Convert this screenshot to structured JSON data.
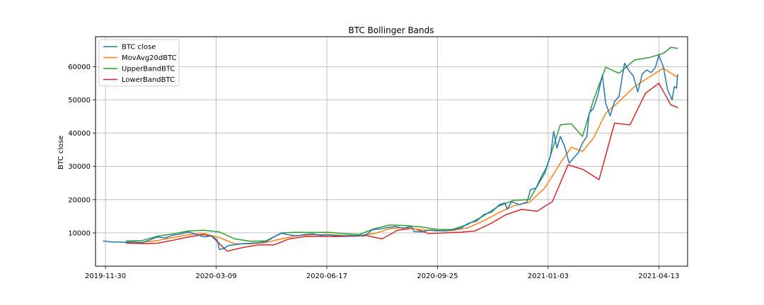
{
  "chart_data": {
    "type": "line",
    "title": "BTC Bollinger Bands",
    "xlabel": "",
    "ylabel": "BTC close",
    "ylim": [
      0,
      69000
    ],
    "xlim_dates": [
      "2019-11-21",
      "2021-05-09"
    ],
    "xticks": [
      "2019-11-30",
      "2020-03-09",
      "2020-06-17",
      "2020-09-25",
      "2021-01-03",
      "2021-04-13"
    ],
    "yticks": [
      10000,
      20000,
      30000,
      40000,
      50000,
      60000
    ],
    "grid": true,
    "legend_position": "top-left",
    "series": [
      {
        "name": "BTC close",
        "color": "#1f77b4",
        "points": [
          [
            "2019-11-28",
            7550
          ],
          [
            "2019-12-05",
            7300
          ],
          [
            "2019-12-12",
            7250
          ],
          [
            "2019-12-19",
            7150
          ],
          [
            "2019-12-26",
            7250
          ],
          [
            "2020-01-02",
            7000
          ],
          [
            "2020-01-09",
            7900
          ],
          [
            "2020-01-16",
            8800
          ],
          [
            "2020-01-23",
            8500
          ],
          [
            "2020-01-30",
            9300
          ],
          [
            "2020-02-06",
            9700
          ],
          [
            "2020-02-13",
            10300
          ],
          [
            "2020-02-20",
            9600
          ],
          [
            "2020-02-27",
            8800
          ],
          [
            "2020-03-05",
            9100
          ],
          [
            "2020-03-10",
            7900
          ],
          [
            "2020-03-12",
            5000
          ],
          [
            "2020-03-16",
            5300
          ],
          [
            "2020-03-20",
            6200
          ],
          [
            "2020-03-27",
            6500
          ],
          [
            "2020-04-03",
            6800
          ],
          [
            "2020-04-10",
            6900
          ],
          [
            "2020-04-17",
            7100
          ],
          [
            "2020-04-24",
            7500
          ],
          [
            "2020-04-30",
            8800
          ],
          [
            "2020-05-07",
            9900
          ],
          [
            "2020-05-14",
            9400
          ],
          [
            "2020-05-21",
            9100
          ],
          [
            "2020-05-28",
            9500
          ],
          [
            "2020-06-04",
            9700
          ],
          [
            "2020-06-11",
            9300
          ],
          [
            "2020-06-18",
            9400
          ],
          [
            "2020-06-25",
            9200
          ],
          [
            "2020-07-02",
            9100
          ],
          [
            "2020-07-09",
            9200
          ],
          [
            "2020-07-16",
            9150
          ],
          [
            "2020-07-23",
            9500
          ],
          [
            "2020-07-28",
            11000
          ],
          [
            "2020-08-04",
            11200
          ],
          [
            "2020-08-11",
            11600
          ],
          [
            "2020-08-18",
            11900
          ],
          [
            "2020-08-25",
            11400
          ],
          [
            "2020-09-01",
            11900
          ],
          [
            "2020-09-04",
            10400
          ],
          [
            "2020-09-11",
            10300
          ],
          [
            "2020-09-18",
            10900
          ],
          [
            "2020-09-25",
            10700
          ],
          [
            "2020-10-02",
            10600
          ],
          [
            "2020-10-09",
            11000
          ],
          [
            "2020-10-16",
            11400
          ],
          [
            "2020-10-23",
            12900
          ],
          [
            "2020-10-30",
            13500
          ],
          [
            "2020-11-06",
            15500
          ],
          [
            "2020-11-13",
            16300
          ],
          [
            "2020-11-20",
            18500
          ],
          [
            "2020-11-25",
            19000
          ],
          [
            "2020-11-27",
            17100
          ],
          [
            "2020-12-01",
            19400
          ],
          [
            "2020-12-08",
            18500
          ],
          [
            "2020-12-15",
            19300
          ],
          [
            "2020-12-18",
            23000
          ],
          [
            "2020-12-23",
            23500
          ],
          [
            "2020-12-28",
            27000
          ],
          [
            "2021-01-01",
            29300
          ],
          [
            "2021-01-05",
            33000
          ],
          [
            "2021-01-08",
            40500
          ],
          [
            "2021-01-11",
            35500
          ],
          [
            "2021-01-14",
            39000
          ],
          [
            "2021-01-18",
            36000
          ],
          [
            "2021-01-22",
            31000
          ],
          [
            "2021-01-26",
            32500
          ],
          [
            "2021-01-30",
            34000
          ],
          [
            "2021-02-03",
            37000
          ],
          [
            "2021-02-07",
            39000
          ],
          [
            "2021-02-09",
            46000
          ],
          [
            "2021-02-13",
            47500
          ],
          [
            "2021-02-17",
            51500
          ],
          [
            "2021-02-21",
            57500
          ],
          [
            "2021-02-24",
            49000
          ],
          [
            "2021-02-28",
            45200
          ],
          [
            "2021-03-04",
            49500
          ],
          [
            "2021-03-08",
            51000
          ],
          [
            "2021-03-13",
            61000
          ],
          [
            "2021-03-17",
            58800
          ],
          [
            "2021-03-21",
            57200
          ],
          [
            "2021-03-25",
            52400
          ],
          [
            "2021-03-29",
            57800
          ],
          [
            "2021-04-02",
            59000
          ],
          [
            "2021-04-06",
            58200
          ],
          [
            "2021-04-10",
            59800
          ],
          [
            "2021-04-13",
            63500
          ],
          [
            "2021-04-17",
            60000
          ],
          [
            "2021-04-21",
            53000
          ],
          [
            "2021-04-25",
            50000
          ],
          [
            "2021-04-27",
            54000
          ],
          [
            "2021-04-29",
            53500
          ],
          [
            "2021-04-30",
            57600
          ]
        ]
      },
      {
        "name": "MovAvg20dBTC",
        "color": "#ff7f0e",
        "points": [
          [
            "2019-12-19",
            7300
          ],
          [
            "2020-01-02",
            7200
          ],
          [
            "2020-01-16",
            7700
          ],
          [
            "2020-01-30",
            8600
          ],
          [
            "2020-02-13",
            9500
          ],
          [
            "2020-02-27",
            9800
          ],
          [
            "2020-03-12",
            8600
          ],
          [
            "2020-03-26",
            6700
          ],
          [
            "2020-04-09",
            6700
          ],
          [
            "2020-04-23",
            7100
          ],
          [
            "2020-05-07",
            8200
          ],
          [
            "2020-05-21",
            9200
          ],
          [
            "2020-06-04",
            9400
          ],
          [
            "2020-06-18",
            9500
          ],
          [
            "2020-07-02",
            9300
          ],
          [
            "2020-07-16",
            9200
          ],
          [
            "2020-07-30",
            9800
          ],
          [
            "2020-08-13",
            11300
          ],
          [
            "2020-08-27",
            11600
          ],
          [
            "2020-09-10",
            11000
          ],
          [
            "2020-09-24",
            10600
          ],
          [
            "2020-10-08",
            10700
          ],
          [
            "2020-10-22",
            11500
          ],
          [
            "2020-11-05",
            13500
          ],
          [
            "2020-11-19",
            16000
          ],
          [
            "2020-12-03",
            18200
          ],
          [
            "2020-12-17",
            19200
          ],
          [
            "2020-12-31",
            23500
          ],
          [
            "2021-01-14",
            31000
          ],
          [
            "2021-01-24",
            35800
          ],
          [
            "2021-02-03",
            34500
          ],
          [
            "2021-02-13",
            38500
          ],
          [
            "2021-02-24",
            46000
          ],
          [
            "2021-03-08",
            49500
          ],
          [
            "2021-03-22",
            54000
          ],
          [
            "2021-04-05",
            57000
          ],
          [
            "2021-04-17",
            59500
          ],
          [
            "2021-04-30",
            56800
          ]
        ]
      },
      {
        "name": "UpperBandBTC",
        "color": "#2ca02c",
        "points": [
          [
            "2019-12-19",
            7600
          ],
          [
            "2020-01-02",
            7700
          ],
          [
            "2020-01-16",
            9000
          ],
          [
            "2020-01-30",
            9700
          ],
          [
            "2020-02-13",
            10600
          ],
          [
            "2020-02-27",
            10800
          ],
          [
            "2020-03-12",
            10300
          ],
          [
            "2020-03-26",
            8200
          ],
          [
            "2020-04-09",
            7500
          ],
          [
            "2020-04-23",
            7600
          ],
          [
            "2020-05-07",
            10000
          ],
          [
            "2020-05-21",
            10200
          ],
          [
            "2020-06-04",
            10100
          ],
          [
            "2020-06-18",
            10200
          ],
          [
            "2020-07-02",
            9800
          ],
          [
            "2020-07-16",
            9500
          ],
          [
            "2020-07-30",
            11300
          ],
          [
            "2020-08-13",
            12400
          ],
          [
            "2020-08-27",
            12200
          ],
          [
            "2020-09-10",
            11800
          ],
          [
            "2020-09-24",
            11100
          ],
          [
            "2020-10-08",
            11000
          ],
          [
            "2020-10-22",
            12500
          ],
          [
            "2020-11-05",
            15000
          ],
          [
            "2020-11-19",
            18000
          ],
          [
            "2020-12-03",
            19800
          ],
          [
            "2020-12-17",
            20000
          ],
          [
            "2020-12-31",
            28000
          ],
          [
            "2021-01-14",
            42500
          ],
          [
            "2021-01-24",
            42800
          ],
          [
            "2021-02-03",
            39000
          ],
          [
            "2021-02-13",
            50000
          ],
          [
            "2021-02-24",
            59800
          ],
          [
            "2021-03-08",
            58000
          ],
          [
            "2021-03-22",
            62000
          ],
          [
            "2021-04-05",
            62800
          ],
          [
            "2021-04-17",
            64000
          ],
          [
            "2021-04-24",
            65800
          ],
          [
            "2021-04-30",
            65500
          ]
        ]
      },
      {
        "name": "LowerBandBTC",
        "color": "#d62728",
        "points": [
          [
            "2019-12-19",
            6900
          ],
          [
            "2020-01-02",
            6800
          ],
          [
            "2020-01-16",
            6900
          ],
          [
            "2020-01-30",
            7800
          ],
          [
            "2020-02-13",
            8800
          ],
          [
            "2020-02-27",
            9500
          ],
          [
            "2020-03-05",
            9000
          ],
          [
            "2020-03-19",
            4500
          ],
          [
            "2020-04-02",
            5600
          ],
          [
            "2020-04-16",
            6400
          ],
          [
            "2020-04-30",
            6400
          ],
          [
            "2020-05-14",
            8200
          ],
          [
            "2020-05-28",
            8900
          ],
          [
            "2020-06-11",
            9000
          ],
          [
            "2020-06-25",
            8900
          ],
          [
            "2020-07-09",
            9000
          ],
          [
            "2020-07-23",
            9200
          ],
          [
            "2020-08-06",
            8200
          ],
          [
            "2020-08-20",
            10800
          ],
          [
            "2020-09-03",
            11400
          ],
          [
            "2020-09-17",
            9800
          ],
          [
            "2020-10-01",
            10000
          ],
          [
            "2020-10-15",
            10200
          ],
          [
            "2020-10-29",
            10600
          ],
          [
            "2020-11-12",
            12800
          ],
          [
            "2020-11-26",
            15500
          ],
          [
            "2020-12-10",
            17100
          ],
          [
            "2020-12-24",
            16500
          ],
          [
            "2021-01-07",
            19500
          ],
          [
            "2021-01-21",
            30500
          ],
          [
            "2021-02-04",
            29000
          ],
          [
            "2021-02-18",
            26000
          ],
          [
            "2021-03-04",
            43000
          ],
          [
            "2021-03-18",
            42500
          ],
          [
            "2021-04-01",
            52000
          ],
          [
            "2021-04-13",
            55000
          ],
          [
            "2021-04-24",
            48500
          ],
          [
            "2021-04-30",
            47700
          ]
        ]
      }
    ]
  }
}
